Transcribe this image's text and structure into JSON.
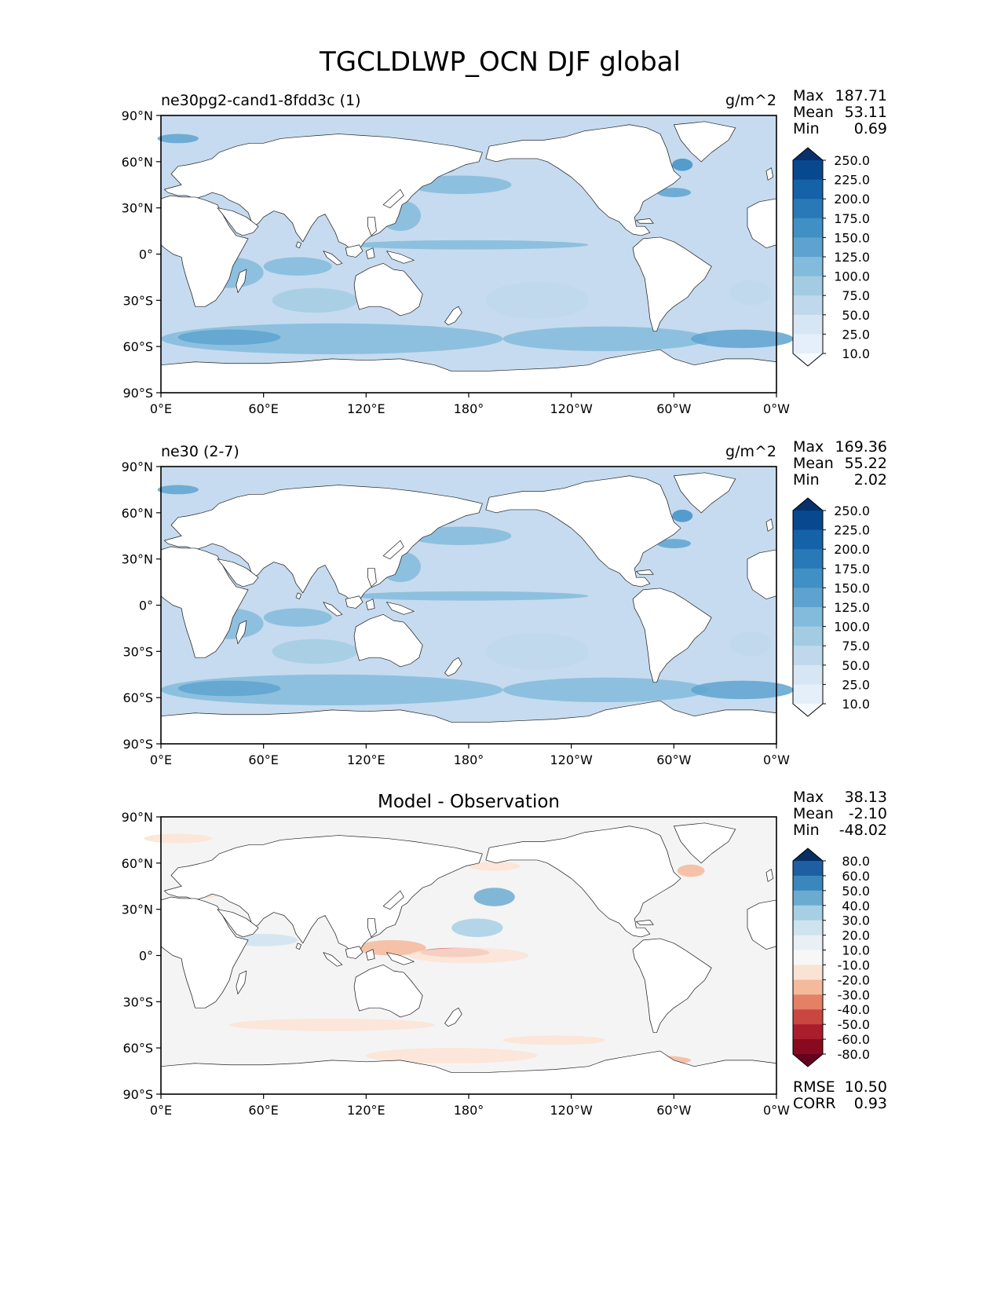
{
  "figure_title": "TGCLDLWP_OCN DJF global",
  "chart_data": [
    {
      "type": "heatmap",
      "projection": "PlateCarree",
      "subtitle_left": "ne30pg2-cand1-8fdd3c (1)",
      "subtitle_right": "g/m^2",
      "stats": [
        {
          "label": "Max",
          "value": "187.71"
        },
        {
          "label": "Mean",
          "value": "53.11"
        },
        {
          "label": "Min",
          "value": "0.69"
        }
      ],
      "xlabels": [
        "0°E",
        "60°E",
        "120°E",
        "180°",
        "120°W",
        "60°W",
        "0°W"
      ],
      "ylabels": [
        "90°N",
        "60°N",
        "30°N",
        "0°",
        "30°S",
        "60°S",
        "90°S"
      ],
      "xlim": [
        0,
        360
      ],
      "ylim": [
        -90,
        90
      ],
      "colorbar": {
        "cmap": "Blues",
        "levels": [
          "250.0",
          "225.0",
          "200.0",
          "175.0",
          "150.0",
          "125.0",
          "100.0",
          "75.0",
          "50.0",
          "25.0",
          "10.0"
        ],
        "colors": [
          "#08306b",
          "#08488e",
          "#1562a9",
          "#2979b9",
          "#4090c5",
          "#5ea3d0",
          "#82bbdb",
          "#a3cce3",
          "#c0d8ec",
          "#d7e6f4",
          "#e5eff9",
          "#f7fbff"
        ]
      },
      "ocean_base_color": "#c6dbef"
    },
    {
      "type": "heatmap",
      "projection": "PlateCarree",
      "subtitle_left": "ne30 (2-7)",
      "subtitle_right": "g/m^2",
      "stats": [
        {
          "label": "Max",
          "value": "169.36"
        },
        {
          "label": "Mean",
          "value": "55.22"
        },
        {
          "label": "Min",
          "value": "2.02"
        }
      ],
      "xlabels": [
        "0°E",
        "60°E",
        "120°E",
        "180°",
        "120°W",
        "60°W",
        "0°W"
      ],
      "ylabels": [
        "90°N",
        "60°N",
        "30°N",
        "0°",
        "30°S",
        "60°S",
        "90°S"
      ],
      "xlim": [
        0,
        360
      ],
      "ylim": [
        -90,
        90
      ],
      "colorbar": {
        "cmap": "Blues",
        "levels": [
          "250.0",
          "225.0",
          "200.0",
          "175.0",
          "150.0",
          "125.0",
          "100.0",
          "75.0",
          "50.0",
          "25.0",
          "10.0"
        ],
        "colors": [
          "#08306b",
          "#08488e",
          "#1562a9",
          "#2979b9",
          "#4090c5",
          "#5ea3d0",
          "#82bbdb",
          "#a3cce3",
          "#c0d8ec",
          "#d7e6f4",
          "#e5eff9",
          "#f7fbff"
        ]
      },
      "ocean_base_color": "#c6dbef"
    },
    {
      "type": "heatmap",
      "projection": "PlateCarree",
      "title": "Model - Observation",
      "stats": [
        {
          "label": "Max",
          "value": "38.13"
        },
        {
          "label": "Mean",
          "value": "-2.10"
        },
        {
          "label": "Min",
          "value": "-48.02"
        }
      ],
      "xlabels": [
        "0°E",
        "60°E",
        "120°E",
        "180°",
        "120°W",
        "60°W",
        "0°W"
      ],
      "ylabels": [
        "90°N",
        "60°N",
        "30°N",
        "0°",
        "30°S",
        "60°S",
        "90°S"
      ],
      "xlim": [
        0,
        360
      ],
      "ylim": [
        -90,
        90
      ],
      "colorbar": {
        "cmap": "RdBu_r",
        "levels": [
          "80.0",
          "60.0",
          "50.0",
          "40.0",
          "30.0",
          "20.0",
          "10.0",
          "-10.0",
          "-20.0",
          "-30.0",
          "-40.0",
          "-50.0",
          "-60.0",
          "-80.0"
        ],
        "colors": [
          "#053061",
          "#1d5fa2",
          "#3a87bd",
          "#6cabd0",
          "#a7cfe4",
          "#cfe3ee",
          "#e8f0f4",
          "#f7f7f7",
          "#fbe3d4",
          "#f5b99b",
          "#e48066",
          "#c94741",
          "#a91d2d",
          "#880a1e",
          "#67001f"
        ]
      },
      "ocean_base_color": "#f4f4f4",
      "footer_stats": [
        {
          "label": "RMSE",
          "value": "10.50"
        },
        {
          "label": "CORR",
          "value": "0.93"
        }
      ]
    }
  ]
}
